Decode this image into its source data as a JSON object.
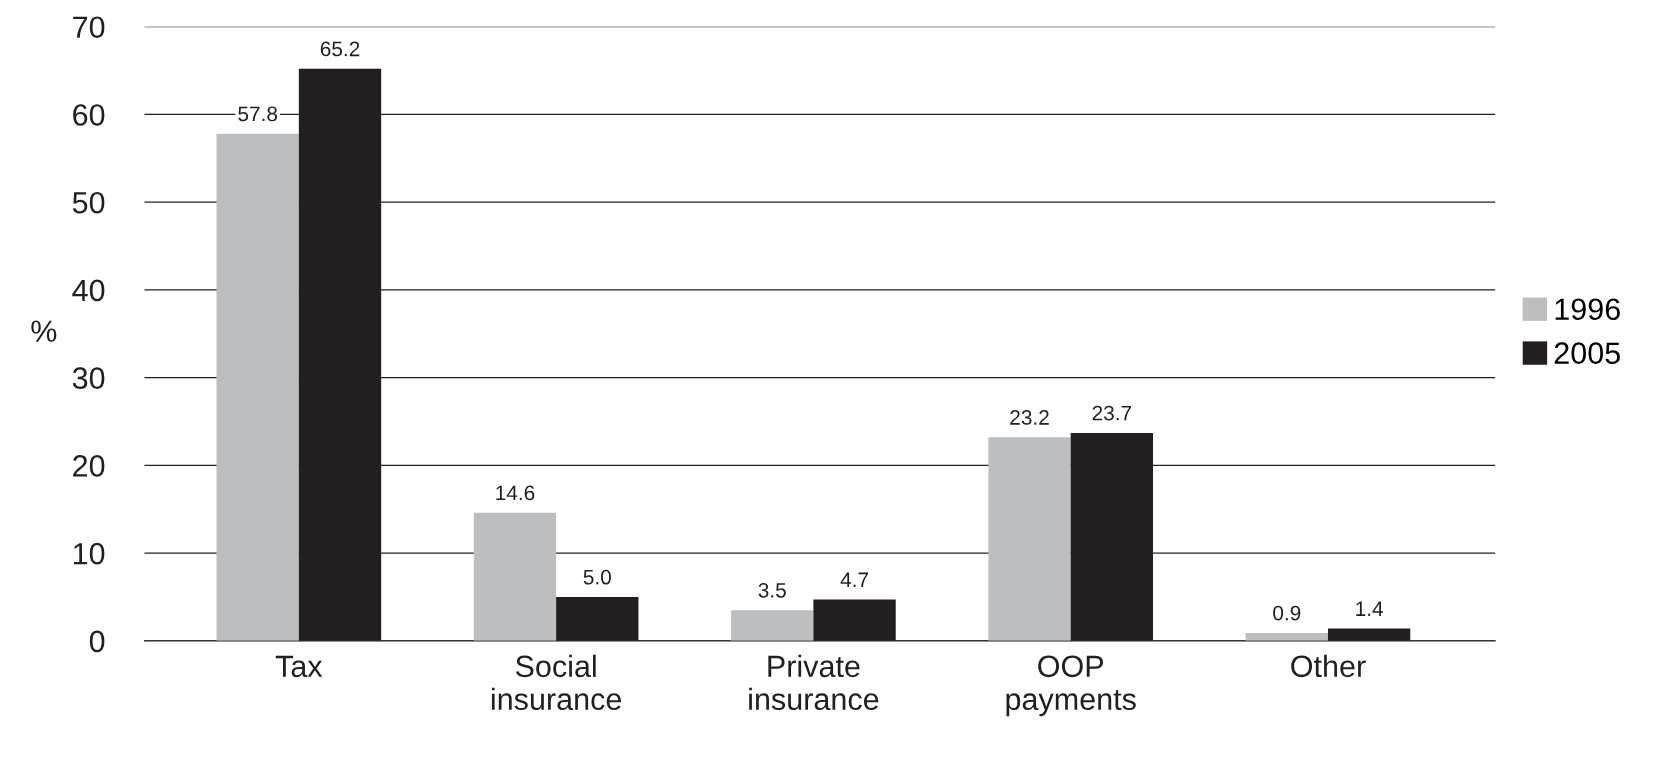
{
  "chart_data": {
    "type": "bar",
    "ylabel": "%",
    "categories": [
      "Tax",
      "Social\ninsurance",
      "Private\ninsurance",
      "OOP\npayments",
      "Other"
    ],
    "series": [
      {
        "name": "1996",
        "color": "#bcbec0",
        "values": [
          57.8,
          14.6,
          3.5,
          23.2,
          0.9
        ],
        "value_labels": [
          "57.8",
          "14.6",
          "3.5",
          "23.2",
          "0.9"
        ]
      },
      {
        "name": "2005",
        "color": "#231f20",
        "values": [
          65.2,
          5.0,
          4.7,
          23.7,
          1.4
        ],
        "value_labels": [
          "65.2",
          "5.0",
          "4.7",
          "23.7",
          "1.4"
        ]
      }
    ],
    "ylim": [
      0,
      70
    ],
    "yticks": [
      0,
      10,
      20,
      30,
      40,
      50,
      60,
      70
    ],
    "grid": "y",
    "legend": "right"
  }
}
